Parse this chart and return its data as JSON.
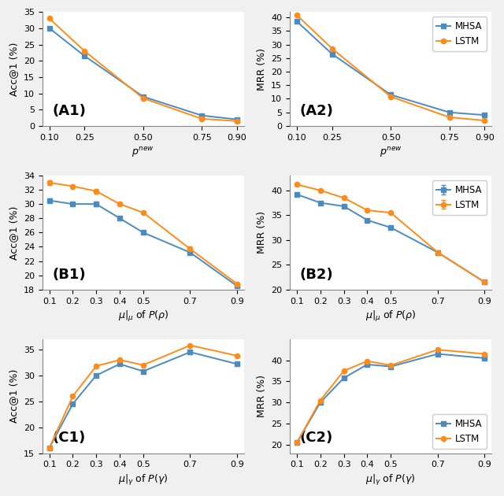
{
  "A1": {
    "x": [
      0.1,
      0.25,
      0.5,
      0.75,
      0.9
    ],
    "mhsa": [
      30.0,
      21.5,
      9.0,
      3.2,
      2.0
    ],
    "lstm": [
      33.0,
      23.0,
      8.5,
      2.2,
      1.5
    ],
    "mhsa_err": [
      0.0,
      0.0,
      0.0,
      0.0,
      0.0
    ],
    "lstm_err": [
      0.0,
      0.0,
      0.0,
      0.0,
      0.0
    ],
    "xlabel": "$p^{new}$",
    "ylabel": "Acc@1 (%)",
    "label": "(A1)",
    "ylim": [
      0,
      35
    ],
    "yticks": [
      0,
      5,
      10,
      15,
      20,
      25,
      30,
      35
    ],
    "xticks": [
      0.1,
      0.25,
      0.5,
      0.75,
      0.9
    ],
    "xticklabels": [
      "0.10",
      "0.25",
      "0.50",
      "0.75",
      "0.90"
    ],
    "legend": false,
    "legend_loc": "upper right"
  },
  "A2": {
    "x": [
      0.1,
      0.25,
      0.5,
      0.75,
      0.9
    ],
    "mhsa": [
      38.5,
      26.5,
      11.5,
      5.0,
      4.0
    ],
    "lstm": [
      40.8,
      28.5,
      10.8,
      3.2,
      2.0
    ],
    "mhsa_err": [
      0.0,
      0.0,
      0.0,
      0.0,
      0.0
    ],
    "lstm_err": [
      0.0,
      0.0,
      0.0,
      0.0,
      0.0
    ],
    "xlabel": "$p^{new}$",
    "ylabel": "MRR (%)",
    "label": "(A2)",
    "ylim": [
      0,
      42
    ],
    "yticks": [
      0,
      5,
      10,
      15,
      20,
      25,
      30,
      35,
      40
    ],
    "xticks": [
      0.1,
      0.25,
      0.5,
      0.75,
      0.9
    ],
    "xticklabels": [
      "0.10",
      "0.25",
      "0.50",
      "0.75",
      "0.90"
    ],
    "legend": true,
    "legend_loc": "upper right"
  },
  "B1": {
    "x": [
      0.1,
      0.2,
      0.3,
      0.4,
      0.5,
      0.7,
      0.9
    ],
    "mhsa": [
      30.5,
      30.0,
      30.0,
      28.0,
      26.0,
      23.2,
      18.5
    ],
    "lstm": [
      33.0,
      32.5,
      31.8,
      30.0,
      28.8,
      23.7,
      18.8
    ],
    "mhsa_err": [
      0.3,
      0.2,
      0.3,
      0.2,
      0.2,
      0.3,
      0.2
    ],
    "lstm_err": [
      0.3,
      0.2,
      0.3,
      0.2,
      0.2,
      0.3,
      0.2
    ],
    "xlabel": "$\\mu|_\\mu$ of $P(\\rho)$",
    "ylabel": "Acc@1 (%)",
    "label": "(B1)",
    "ylim": [
      18,
      34
    ],
    "yticks": [
      18,
      20,
      22,
      24,
      26,
      28,
      30,
      32,
      34
    ],
    "xticks": [
      0.1,
      0.2,
      0.3,
      0.4,
      0.5,
      0.7,
      0.9
    ],
    "xticklabels": [
      "0.1",
      "0.2",
      "0.3",
      "0.4",
      "0.5",
      "0.7",
      "0.9"
    ],
    "legend": false,
    "legend_loc": "upper right"
  },
  "B2": {
    "x": [
      0.1,
      0.2,
      0.3,
      0.4,
      0.5,
      0.7,
      0.9
    ],
    "mhsa": [
      39.2,
      37.5,
      36.8,
      34.0,
      32.5,
      27.5,
      21.5
    ],
    "lstm": [
      41.2,
      40.0,
      38.5,
      36.0,
      35.5,
      27.5,
      21.5
    ],
    "mhsa_err": [
      0.3,
      0.2,
      0.2,
      0.2,
      0.2,
      0.3,
      0.2
    ],
    "lstm_err": [
      0.3,
      0.2,
      0.2,
      0.2,
      0.2,
      0.3,
      0.2
    ],
    "xlabel": "$\\mu|_\\mu$ of $P(\\rho)$",
    "ylabel": "MRR (%)",
    "label": "(B2)",
    "ylim": [
      20,
      43
    ],
    "yticks": [
      20,
      25,
      30,
      35,
      40
    ],
    "xticks": [
      0.1,
      0.2,
      0.3,
      0.4,
      0.5,
      0.7,
      0.9
    ],
    "xticklabels": [
      "0.1",
      "0.2",
      "0.3",
      "0.4",
      "0.5",
      "0.7",
      "0.9"
    ],
    "legend": true,
    "legend_loc": "upper right"
  },
  "C1": {
    "x": [
      0.1,
      0.2,
      0.3,
      0.4,
      0.5,
      0.7,
      0.9
    ],
    "mhsa": [
      16.0,
      24.5,
      30.0,
      32.2,
      30.8,
      34.5,
      32.2
    ],
    "lstm": [
      16.0,
      26.0,
      31.8,
      33.0,
      32.0,
      35.8,
      33.8
    ],
    "mhsa_err": [
      0.0,
      0.0,
      0.0,
      0.0,
      0.0,
      0.0,
      0.0
    ],
    "lstm_err": [
      0.0,
      0.0,
      0.0,
      0.0,
      0.0,
      0.0,
      0.0
    ],
    "xlabel": "$\\mu|_\\gamma$ of $P(\\gamma)$",
    "ylabel": "Acc@1 (%)",
    "label": "(C1)",
    "ylim": [
      15,
      37
    ],
    "yticks": [
      15,
      20,
      25,
      30,
      35
    ],
    "xticks": [
      0.1,
      0.2,
      0.3,
      0.4,
      0.5,
      0.7,
      0.9
    ],
    "xticklabels": [
      "0.1",
      "0.2",
      "0.3",
      "0.4",
      "0.5",
      "0.7",
      "0.9"
    ],
    "legend": false,
    "legend_loc": "lower right"
  },
  "C2": {
    "x": [
      0.1,
      0.2,
      0.3,
      0.4,
      0.5,
      0.7,
      0.9
    ],
    "mhsa": [
      20.5,
      30.0,
      35.8,
      39.0,
      38.5,
      41.5,
      40.5
    ],
    "lstm": [
      20.5,
      30.5,
      37.5,
      39.8,
      38.8,
      42.5,
      41.5
    ],
    "mhsa_err": [
      0.0,
      0.0,
      0.0,
      0.0,
      0.0,
      0.0,
      0.0
    ],
    "lstm_err": [
      0.0,
      0.0,
      0.0,
      0.0,
      0.0,
      0.0,
      0.0
    ],
    "xlabel": "$\\mu|_\\gamma$ of $P(\\gamma)$",
    "ylabel": "MRR (%)",
    "label": "(C2)",
    "ylim": [
      18,
      45
    ],
    "yticks": [
      20,
      25,
      30,
      35,
      40
    ],
    "xticks": [
      0.1,
      0.2,
      0.3,
      0.4,
      0.5,
      0.7,
      0.9
    ],
    "xticklabels": [
      "0.1",
      "0.2",
      "0.3",
      "0.4",
      "0.5",
      "0.7",
      "0.9"
    ],
    "legend": true,
    "legend_loc": "lower right"
  },
  "mhsa_color": "#4C8BBF",
  "lstm_color": "#FF8C1A",
  "mhsa_marker": "s",
  "lstm_marker": "o",
  "panel_label_fontsize": 13,
  "axis_label_fontsize": 9,
  "tick_fontsize": 8,
  "legend_fontsize": 8.5,
  "linewidth": 1.4,
  "markersize": 4.5,
  "capsize": 2,
  "elinewidth": 1.0
}
